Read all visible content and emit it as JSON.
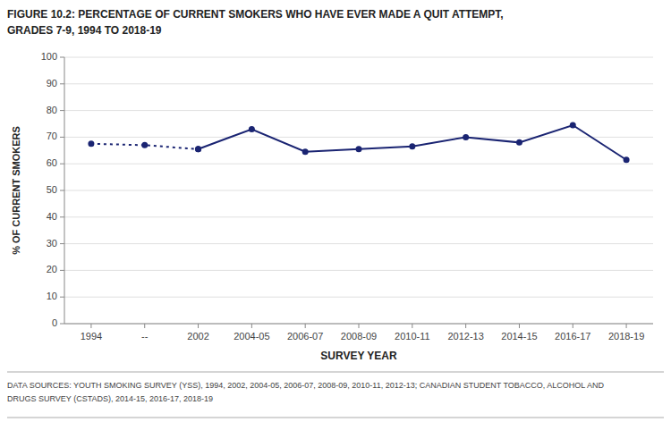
{
  "chart_data": {
    "type": "line",
    "title": "FIGURE 10.2: PERCENTAGE OF CURRENT SMOKERS WHO HAVE EVER MADE A QUIT ATTEMPT,",
    "subtitle": "GRADES 7-9, 1994 TO 2018-19",
    "x_label": "SURVEY YEAR",
    "y_label": "% OF CURRENT SMOKERS",
    "categories": [
      "1994",
      "--",
      "2002",
      "2004-05",
      "2006-07",
      "2008-09",
      "2010-11",
      "2012-13",
      "2014-15",
      "2016-17",
      "2018-19"
    ],
    "series": [
      {
        "color": "#1a2472",
        "line_style": "dotted",
        "marker": "circle",
        "values": [
          67.5,
          67.0,
          65.5,
          null,
          null,
          null,
          null,
          null,
          null,
          null,
          null
        ]
      },
      {
        "color": "#1a2472",
        "line_style": "solid",
        "marker": "circle",
        "values": [
          null,
          null,
          65.5,
          73.0,
          64.5,
          65.5,
          66.5,
          70.0,
          68.0,
          74.5,
          61.5
        ]
      }
    ],
    "ylim": [
      0,
      100
    ],
    "yticks": [
      0,
      10,
      20,
      30,
      40,
      50,
      60,
      70,
      80,
      90,
      100
    ],
    "grid": true,
    "annotations": [
      "DATA SOURCES: YOUTH SMOKING SURVEY (YSS), 1994, 2002, 2004-05, 2006-07, 2008-09, 2010-11, 2012-13; CANADIAN STUDENT TOBACCO, ALCOHOL AND",
      "DRUGS SURVEY (CSTADS), 2014-15, 2016-17, 2018-19"
    ]
  }
}
